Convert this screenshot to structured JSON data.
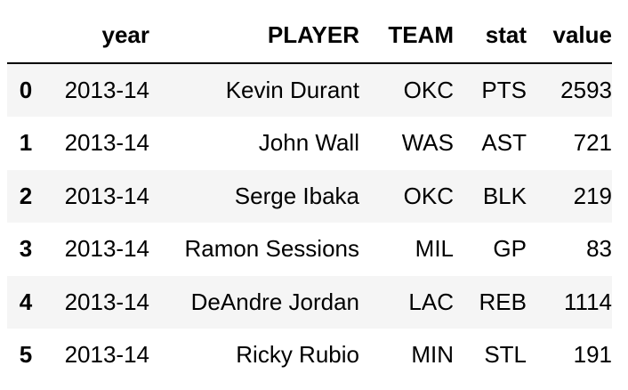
{
  "table": {
    "columns": [
      "",
      "year",
      "PLAYER",
      "TEAM",
      "stat",
      "value"
    ],
    "rows": [
      {
        "index": "0",
        "year": "2013-14",
        "player": "Kevin Durant",
        "team": "OKC",
        "stat": "PTS",
        "value": "2593"
      },
      {
        "index": "1",
        "year": "2013-14",
        "player": "John Wall",
        "team": "WAS",
        "stat": "AST",
        "value": "721"
      },
      {
        "index": "2",
        "year": "2013-14",
        "player": "Serge Ibaka",
        "team": "OKC",
        "stat": "BLK",
        "value": "219"
      },
      {
        "index": "3",
        "year": "2013-14",
        "player": "Ramon Sessions",
        "team": "MIL",
        "stat": "GP",
        "value": "83"
      },
      {
        "index": "4",
        "year": "2013-14",
        "player": "DeAndre Jordan",
        "team": "LAC",
        "stat": "REB",
        "value": "1114"
      },
      {
        "index": "5",
        "year": "2013-14",
        "player": "Ricky Rubio",
        "team": "MIN",
        "stat": "STL",
        "value": "191"
      }
    ]
  }
}
